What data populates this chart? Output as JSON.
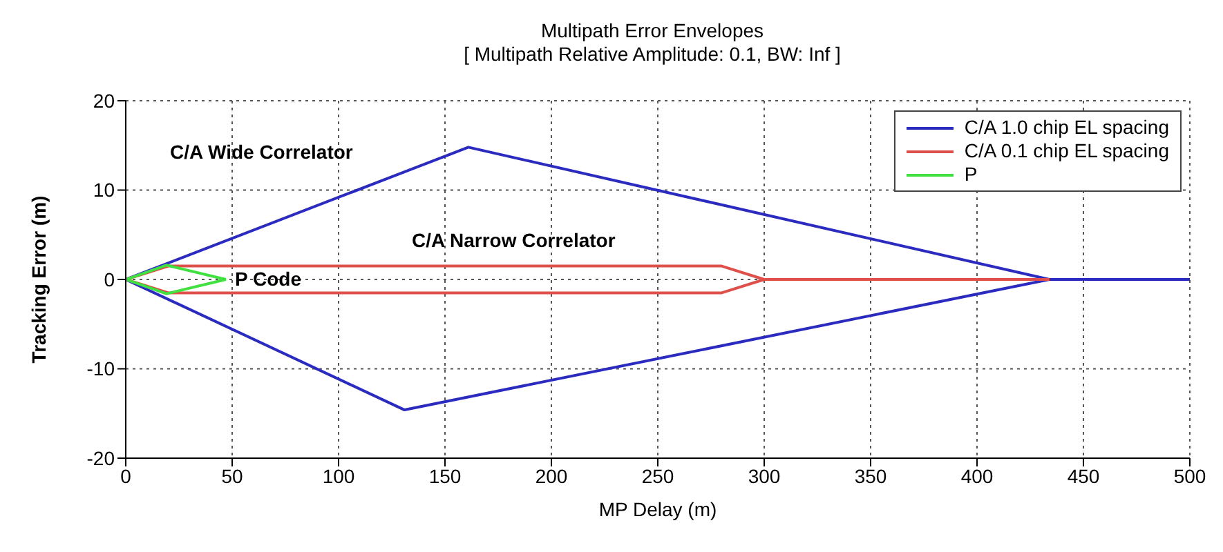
{
  "chart_data": {
    "type": "line",
    "title": "Multipath Error Envelopes",
    "subtitle": "[ Multipath Relative Amplitude: 0.1, BW: Inf ]",
    "xlabel": "MP Delay (m)",
    "ylabel": "Tracking Error (m)",
    "xlim": [
      0,
      500
    ],
    "xticks": [
      0,
      50,
      100,
      150,
      200,
      250,
      300,
      350,
      400,
      450,
      500
    ],
    "ylim": [
      -20,
      20
    ],
    "yticks": [
      -20,
      -10,
      0,
      10,
      20
    ],
    "grid": true,
    "legend": "top right",
    "marker": "none",
    "line_style": "solid",
    "series": [
      {
        "name": "C/A 1.0 chip EL spacing",
        "color": "#2b2bc0",
        "x": [
          0,
          161,
          434,
          500
        ],
        "values": [
          0,
          14.8,
          0,
          0
        ]
      },
      {
        "color": "#2b2bc0",
        "x": [
          0,
          131,
          434
        ],
        "values": [
          0,
          -14.6,
          0
        ]
      },
      {
        "name": "C/A 0.1 chip EL spacing",
        "color": "#e0504a",
        "x": [
          0,
          20,
          280,
          300,
          434
        ],
        "values": [
          0,
          1.5,
          1.5,
          0,
          0
        ]
      },
      {
        "color": "#e0504a",
        "x": [
          0,
          20,
          280,
          300
        ],
        "values": [
          0,
          -1.5,
          -1.5,
          0
        ]
      },
      {
        "name": "P",
        "color": "#40e040",
        "x": [
          0,
          19,
          47
        ],
        "values": [
          0,
          1.6,
          0
        ]
      },
      {
        "color": "#40e040",
        "x": [
          0,
          19,
          47
        ],
        "values": [
          0,
          -1.6,
          0
        ]
      }
    ],
    "annotations": [
      "C/A Wide Correlator",
      "C/A Narrow Correlator",
      "P Code"
    ]
  }
}
